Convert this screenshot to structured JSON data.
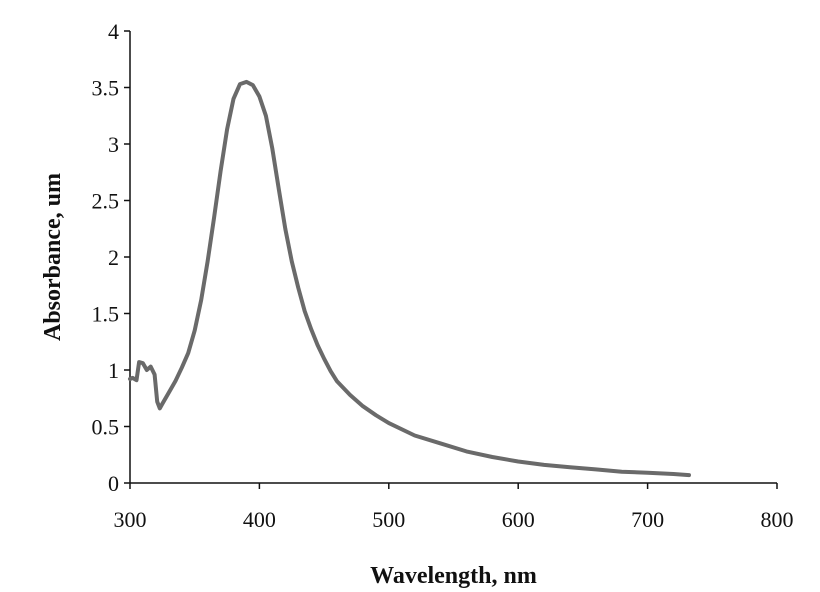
{
  "chart_data": {
    "type": "line",
    "title": "",
    "xlabel": "Wavelength, nm",
    "ylabel": "Absorbance, um",
    "xlim": [
      300,
      800
    ],
    "ylim": [
      0,
      4
    ],
    "x_ticks": [
      300,
      400,
      500,
      600,
      700,
      800
    ],
    "y_ticks": [
      0,
      0.5,
      1,
      1.5,
      2,
      2.5,
      3,
      3.5,
      4
    ],
    "y_tick_labels": [
      "0",
      "0.5",
      "1",
      "1.5",
      "2",
      "2.5",
      "3",
      "3.5",
      "4"
    ],
    "grid": false,
    "legend": "none",
    "line_color": "#6a6a6a",
    "series": [
      {
        "x": [
          300,
          302,
          305,
          307,
          310,
          313,
          316,
          319,
          321,
          323,
          325,
          330,
          335,
          340,
          345,
          350,
          355,
          360,
          365,
          370,
          375,
          380,
          385,
          390,
          395,
          400,
          405,
          410,
          415,
          420,
          425,
          430,
          435,
          440,
          445,
          450,
          455,
          460,
          470,
          480,
          490,
          500,
          520,
          540,
          560,
          580,
          600,
          620,
          640,
          660,
          680,
          700,
          720,
          732
        ],
        "y": [
          0.92,
          0.93,
          0.91,
          1.07,
          1.06,
          1.0,
          1.03,
          0.96,
          0.72,
          0.66,
          0.7,
          0.8,
          0.9,
          1.02,
          1.15,
          1.35,
          1.62,
          1.96,
          2.35,
          2.76,
          3.13,
          3.4,
          3.53,
          3.55,
          3.52,
          3.42,
          3.25,
          2.96,
          2.6,
          2.25,
          1.96,
          1.73,
          1.52,
          1.36,
          1.22,
          1.1,
          0.99,
          0.9,
          0.78,
          0.68,
          0.6,
          0.53,
          0.42,
          0.35,
          0.28,
          0.23,
          0.19,
          0.16,
          0.14,
          0.12,
          0.1,
          0.09,
          0.08,
          0.07
        ]
      }
    ]
  }
}
